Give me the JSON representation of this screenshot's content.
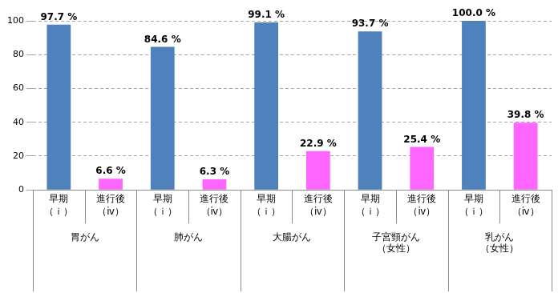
{
  "chart_data": {
    "type": "bar",
    "categories": [
      "胃がん",
      "肺がん",
      "大腸がん",
      "子宮頸がん（女性）",
      "乳がん（女性）"
    ],
    "series": [
      {
        "name": "早期（ｉ）",
        "color": "#4f81bd",
        "values": [
          97.7,
          84.6,
          99.1,
          93.7,
          100.0
        ],
        "value_labels": [
          "97.7 %",
          "84.6 %",
          "99.1 %",
          "93.7 %",
          "100.0 %"
        ]
      },
      {
        "name": "進行後（ⅳ）",
        "color": "#ff66ff",
        "values": [
          6.6,
          6.3,
          22.9,
          25.4,
          39.8
        ],
        "value_labels": [
          "6.6 %",
          "6.3 %",
          "22.9 %",
          "25.4 %",
          "39.8 %"
        ]
      }
    ],
    "ylim": [
      0,
      100
    ],
    "yticks": [
      0,
      20,
      40,
      60,
      80,
      100
    ],
    "grid": true,
    "data_labels": true
  }
}
